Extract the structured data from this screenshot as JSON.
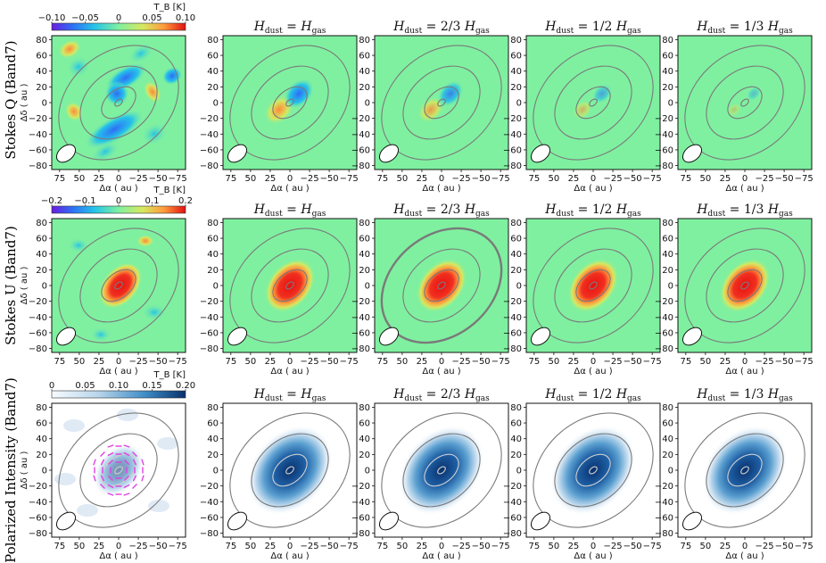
{
  "rows": [
    {
      "id": "q",
      "label": "Stokes Q (Band7)",
      "colorbar": {
        "ticks": [
          "−0.10",
          "−0.05",
          "0",
          "0.05",
          "0.10"
        ],
        "unit": "T_B [K]",
        "cmap": "rainbow"
      }
    },
    {
      "id": "u",
      "label": "Stokes U (Band7)",
      "colorbar": {
        "ticks": [
          "−0.2",
          "−0.1",
          "0",
          "0.1",
          "0.2"
        ],
        "unit": "T_B [K]",
        "cmap": "rainbow"
      }
    },
    {
      "id": "pi",
      "label": "Polarized Intensity (Band7)",
      "colorbar": {
        "ticks": [
          "0",
          "0.05",
          "0.10",
          "0.15",
          "0.20"
        ],
        "unit": "T_B [K]",
        "cmap": "blues"
      }
    }
  ],
  "model_titles": [
    {
      "pre": "H",
      "sub1": "dust",
      "mid": " = ",
      "coef": "",
      "post": "H",
      "sub2": "gas"
    },
    {
      "pre": "H",
      "sub1": "dust",
      "mid": " = ",
      "coef": "2/3 ",
      "post": "H",
      "sub2": "gas"
    },
    {
      "pre": "H",
      "sub1": "dust",
      "mid": " = ",
      "coef": "1/2 ",
      "post": "H",
      "sub2": "gas"
    },
    {
      "pre": "H",
      "sub1": "dust",
      "mid": " = ",
      "coef": "1/3 ",
      "post": "H",
      "sub2": "gas"
    }
  ],
  "axes": {
    "xlabel": "Δα ( au )",
    "ylabel": "Δδ ( au )",
    "xticks": [
      "75",
      "50",
      "25",
      "0",
      "−25",
      "−50",
      "−75"
    ],
    "xtick_values": [
      75,
      50,
      25,
      0,
      -25,
      -50,
      -75
    ],
    "yticks": [
      "80",
      "60",
      "40",
      "20",
      "0",
      "−20",
      "−40",
      "−60",
      "−80"
    ],
    "ytick_values": [
      80,
      60,
      40,
      20,
      0,
      -20,
      -40,
      -60,
      -80
    ],
    "xlim": [
      85,
      -85
    ],
    "ylim": [
      -85,
      85
    ]
  },
  "colors": {
    "contour": "#7a7a7a",
    "vector": "#e040e0",
    "background_rainbow": "#7ff0a0"
  }
}
